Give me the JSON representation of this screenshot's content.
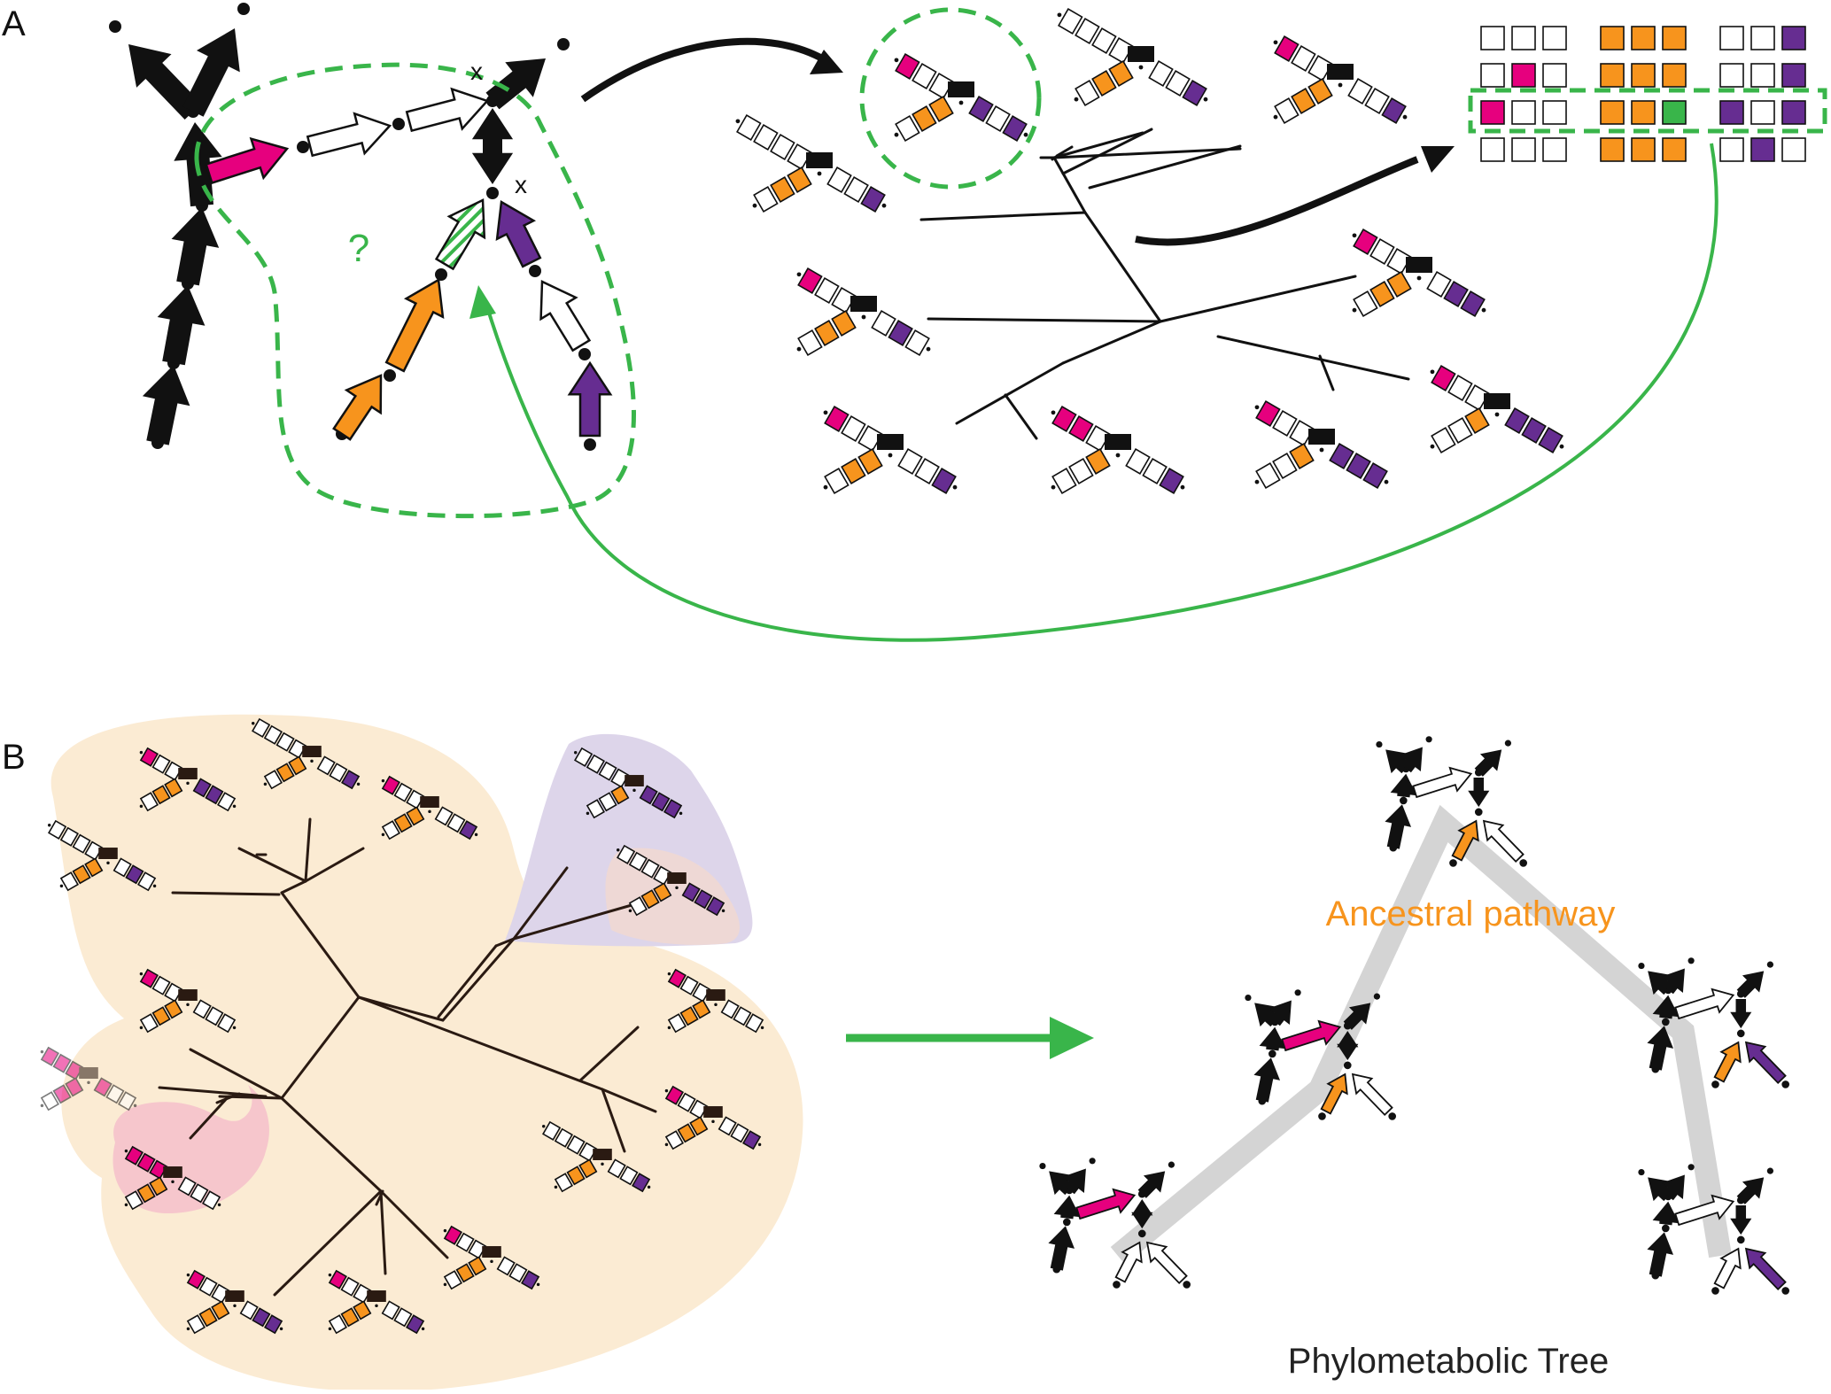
{
  "panel_a": {
    "label": "A",
    "question_mark": "?",
    "node_x1": "x",
    "node_x2": "x"
  },
  "panel_b": {
    "label": "B",
    "ancestral_label": "Ancestral pathway",
    "tree_caption": "Phylometabolic Tree"
  },
  "colors": {
    "black": "#111111",
    "magenta": "#e6007e",
    "orange": "#f7941d",
    "purple": "#662d91",
    "green": "#39b54a",
    "dark_brown": "#2a1a12",
    "beige_region": "#fbebd3",
    "lavender_region": "#ddd5ea",
    "pink_region": "#f6c6cc",
    "gray_path": "#cfcfcf"
  },
  "icons": {
    "pathway_node": "node-dot-icon",
    "reaction": "reaction-arrow-icon",
    "gene_cluster": "gene-cluster-icon"
  }
}
